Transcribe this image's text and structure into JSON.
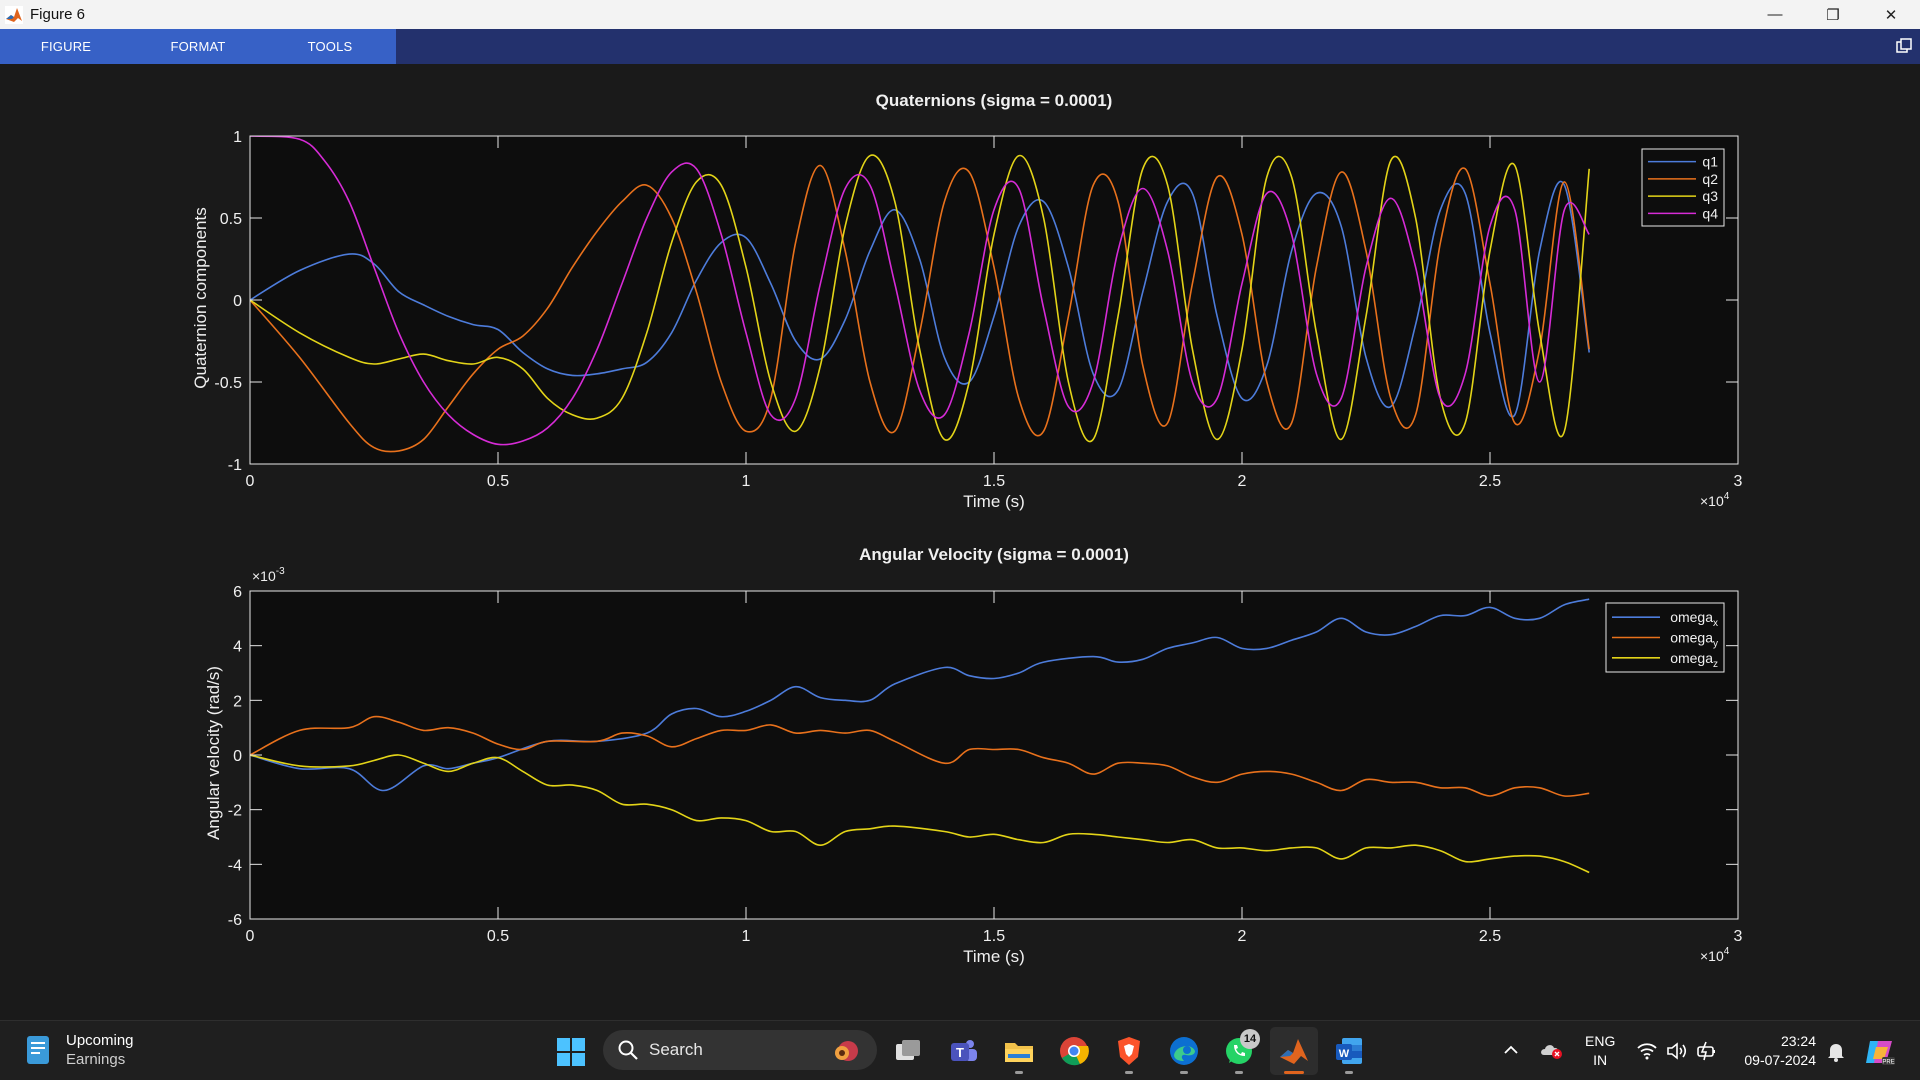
{
  "window": {
    "title": "Figure 6"
  },
  "ribbon": {
    "tabs": [
      "FIGURE",
      "FORMAT",
      "TOOLS"
    ]
  },
  "chart_data": [
    {
      "type": "line",
      "title": "Quaternions (sigma = 0.0001)",
      "xlabel": "Time (s)",
      "ylabel": "Quaternion components",
      "x_exponent": "×10",
      "x_exponent_power": "4",
      "xlim": [
        0,
        30000
      ],
      "ylim": [
        -1,
        1
      ],
      "xticks": [
        0,
        5000,
        10000,
        15000,
        20000,
        25000,
        30000
      ],
      "xtick_labels": [
        "0",
        "0.5",
        "1",
        "1.5",
        "2",
        "2.5",
        "3"
      ],
      "yticks": [
        -1,
        -0.5,
        0,
        0.5,
        1
      ],
      "ytick_labels": [
        "-1",
        "-0.5",
        "0",
        "0.5",
        "1"
      ],
      "legend_position": "top-right",
      "grid": false,
      "series": [
        {
          "name": "q1",
          "color": "#4d7cdb",
          "x": [
            0,
            1000,
            2000,
            2500,
            3000,
            3500,
            4000,
            4500,
            5000,
            5500,
            6000,
            6500,
            7000,
            7500,
            8000,
            8500,
            9000,
            9500,
            10000,
            10500,
            11000,
            11500,
            12000,
            12500,
            13000,
            13500,
            14000,
            14500,
            15000,
            15500,
            16000,
            16500,
            17000,
            17500,
            18000,
            18500,
            19000,
            19500,
            20000,
            20500,
            21000,
            21500,
            22000,
            22500,
            23000,
            23500,
            24000,
            24500,
            25000,
            25500,
            26000,
            26500,
            27000
          ],
          "y": [
            0,
            0.18,
            0.28,
            0.22,
            0.05,
            -0.03,
            -0.1,
            -0.15,
            -0.18,
            -0.32,
            -0.42,
            -0.46,
            -0.45,
            -0.42,
            -0.38,
            -0.2,
            0.12,
            0.35,
            0.38,
            0.1,
            -0.25,
            -0.36,
            -0.12,
            0.3,
            0.55,
            0.25,
            -0.35,
            -0.5,
            -0.1,
            0.45,
            0.6,
            0.2,
            -0.45,
            -0.55,
            0.05,
            0.6,
            0.65,
            -0.1,
            -0.6,
            -0.4,
            0.3,
            0.65,
            0.45,
            -0.35,
            -0.65,
            -0.15,
            0.55,
            0.65,
            -0.2,
            -0.7,
            0.3,
            0.7,
            -0.32
          ]
        },
        {
          "name": "q2",
          "color": "#e8711c",
          "x": [
            0,
            1000,
            2000,
            2500,
            3000,
            3500,
            4000,
            4500,
            5000,
            5500,
            6000,
            6500,
            7000,
            7500,
            8000,
            8500,
            9000,
            9500,
            10000,
            10500,
            11000,
            11500,
            12000,
            12500,
            13000,
            13500,
            14000,
            14500,
            15000,
            15500,
            16000,
            16500,
            17000,
            17500,
            18000,
            18500,
            19000,
            19500,
            20000,
            20500,
            21000,
            21500,
            22000,
            22500,
            23000,
            23500,
            24000,
            24500,
            25000,
            25500,
            26000,
            26500,
            27000
          ],
          "y": [
            0,
            -0.35,
            -0.75,
            -0.9,
            -0.92,
            -0.85,
            -0.65,
            -0.45,
            -0.3,
            -0.22,
            -0.05,
            0.2,
            0.42,
            0.6,
            0.7,
            0.5,
            0.05,
            -0.5,
            -0.8,
            -0.6,
            0.35,
            0.82,
            0.3,
            -0.5,
            -0.8,
            -0.2,
            0.6,
            0.78,
            0.2,
            -0.6,
            -0.8,
            -0.1,
            0.7,
            0.6,
            -0.4,
            -0.75,
            0.1,
            0.75,
            0.4,
            -0.5,
            -0.75,
            0.2,
            0.78,
            0.3,
            -0.6,
            -0.7,
            0.35,
            0.8,
            0.1,
            -0.75,
            -0.3,
            0.72,
            -0.3
          ]
        },
        {
          "name": "q3",
          "color": "#e3d418",
          "x": [
            0,
            1000,
            2000,
            2500,
            3000,
            3500,
            4000,
            4500,
            5000,
            5500,
            6000,
            6500,
            7000,
            7500,
            8000,
            8500,
            9000,
            9500,
            10000,
            10500,
            11000,
            11500,
            12000,
            12500,
            13000,
            13500,
            14000,
            14500,
            15000,
            15500,
            16000,
            16500,
            17000,
            17500,
            18000,
            18500,
            19000,
            19500,
            20000,
            20500,
            21000,
            21500,
            22000,
            22500,
            23000,
            23500,
            24000,
            24500,
            25000,
            25500,
            26000,
            26500,
            27000
          ],
          "y": [
            0,
            -0.2,
            -0.35,
            -0.39,
            -0.36,
            -0.33,
            -0.37,
            -0.39,
            -0.35,
            -0.42,
            -0.6,
            -0.7,
            -0.72,
            -0.6,
            -0.2,
            0.35,
            0.72,
            0.7,
            0.2,
            -0.5,
            -0.8,
            -0.4,
            0.45,
            0.88,
            0.6,
            -0.3,
            -0.85,
            -0.5,
            0.4,
            0.88,
            0.5,
            -0.5,
            -0.85,
            -0.1,
            0.8,
            0.7,
            -0.3,
            -0.85,
            -0.3,
            0.75,
            0.75,
            -0.2,
            -0.85,
            -0.1,
            0.85,
            0.5,
            -0.6,
            -0.75,
            0.3,
            0.82,
            -0.2,
            -0.8,
            0.8
          ]
        },
        {
          "name": "q4",
          "color": "#d62bd6",
          "x": [
            0,
            1000,
            1500,
            2000,
            2500,
            3000,
            3500,
            4000,
            4500,
            5000,
            5500,
            6000,
            6500,
            7000,
            7500,
            8000,
            8500,
            9000,
            9500,
            10000,
            10500,
            11000,
            11500,
            12000,
            12500,
            13000,
            13500,
            14000,
            14500,
            15000,
            15500,
            16000,
            16500,
            17000,
            17500,
            18000,
            18500,
            19000,
            19500,
            20000,
            20500,
            21000,
            21500,
            22000,
            22500,
            23000,
            23500,
            24000,
            24500,
            25000,
            25500,
            26000,
            26500,
            27000
          ],
          "y": [
            1,
            0.98,
            0.85,
            0.6,
            0.2,
            -0.2,
            -0.5,
            -0.7,
            -0.82,
            -0.88,
            -0.86,
            -0.78,
            -0.6,
            -0.3,
            0.1,
            0.5,
            0.78,
            0.8,
            0.4,
            -0.2,
            -0.7,
            -0.6,
            0.1,
            0.68,
            0.7,
            0.1,
            -0.55,
            -0.7,
            -0.2,
            0.55,
            0.68,
            -0.05,
            -0.65,
            -0.5,
            0.3,
            0.68,
            0.3,
            -0.5,
            -0.6,
            0.1,
            0.65,
            0.4,
            -0.45,
            -0.6,
            0.2,
            0.62,
            0.2,
            -0.6,
            -0.45,
            0.45,
            0.55,
            -0.5,
            0.55,
            0.4
          ]
        }
      ]
    },
    {
      "type": "line",
      "title": "Angular Velocity (sigma = 0.0001)",
      "xlabel": "Time (s)",
      "ylabel": "Angular velocity (rad/s)",
      "x_exponent": "×10",
      "x_exponent_power": "4",
      "y_exponent": "×10",
      "y_exponent_power": "-3",
      "xlim": [
        0,
        30000
      ],
      "ylim": [
        -0.006,
        0.006
      ],
      "xticks": [
        0,
        5000,
        10000,
        15000,
        20000,
        25000,
        30000
      ],
      "xtick_labels": [
        "0",
        "0.5",
        "1",
        "1.5",
        "2",
        "2.5",
        "3"
      ],
      "yticks": [
        -0.006,
        -0.004,
        -0.002,
        0,
        0.002,
        0.004,
        0.006
      ],
      "ytick_labels": [
        "-6",
        "-4",
        "-2",
        "0",
        "2",
        "4",
        "6"
      ],
      "legend_position": "top-right",
      "grid": false,
      "series": [
        {
          "name": "omega",
          "subscript": "x",
          "color": "#4d7cdb",
          "x": [
            0,
            1000,
            2000,
            2700,
            3500,
            4000,
            4500,
            5000,
            6000,
            7000,
            8000,
            8500,
            9000,
            9500,
            10000,
            10500,
            11000,
            11500,
            12000,
            12500,
            13000,
            14000,
            14500,
            15000,
            15500,
            16000,
            17000,
            17500,
            18000,
            18500,
            19000,
            19500,
            20000,
            20500,
            21000,
            21500,
            22000,
            22500,
            23000,
            23500,
            24000,
            24500,
            25000,
            25500,
            26000,
            26500,
            27000
          ],
          "y": [
            0,
            -0.0005,
            -0.0005,
            -0.0013,
            -0.0004,
            -0.0005,
            -0.0003,
            -0.0001,
            0.0005,
            0.0005,
            0.0008,
            0.0015,
            0.0017,
            0.0014,
            0.0016,
            0.002,
            0.0025,
            0.0021,
            0.002,
            0.002,
            0.0026,
            0.0032,
            0.0029,
            0.0028,
            0.003,
            0.0034,
            0.0036,
            0.0034,
            0.0035,
            0.0039,
            0.0041,
            0.0043,
            0.0039,
            0.0039,
            0.0042,
            0.0045,
            0.005,
            0.0045,
            0.0044,
            0.0047,
            0.0051,
            0.0051,
            0.0054,
            0.005,
            0.005,
            0.0055,
            0.0057
          ]
        },
        {
          "name": "omega",
          "subscript": "y",
          "color": "#e8711c",
          "x": [
            0,
            1000,
            2000,
            2500,
            3000,
            3500,
            4000,
            4500,
            5000,
            5500,
            6000,
            7000,
            7500,
            8000,
            8500,
            9000,
            9500,
            10000,
            10500,
            11000,
            11500,
            12000,
            12500,
            13000,
            14000,
            14500,
            15000,
            15500,
            16000,
            16500,
            17000,
            17500,
            18000,
            18500,
            19000,
            19500,
            20000,
            20500,
            21000,
            21500,
            22000,
            22500,
            23000,
            23500,
            24000,
            24500,
            25000,
            25500,
            26000,
            26500,
            27000
          ],
          "y": [
            0,
            0.0009,
            0.001,
            0.0014,
            0.0012,
            0.0009,
            0.001,
            0.0008,
            0.0004,
            0.0002,
            0.0005,
            0.0005,
            0.0008,
            0.0007,
            0.0003,
            0.0006,
            0.0009,
            0.0009,
            0.0011,
            0.0008,
            0.0009,
            0.0008,
            0.0009,
            0.0005,
            -0.0003,
            0.0002,
            0.0002,
            0.0002,
            -0.0001,
            -0.0003,
            -0.0007,
            -0.0003,
            -0.0003,
            -0.0004,
            -0.0008,
            -0.001,
            -0.0007,
            -0.0006,
            -0.0007,
            -0.001,
            -0.0013,
            -0.0009,
            -0.001,
            -0.001,
            -0.0012,
            -0.0012,
            -0.0015,
            -0.0012,
            -0.0012,
            -0.0015,
            -0.0014
          ]
        },
        {
          "name": "omega",
          "subscript": "z",
          "color": "#e3d418",
          "x": [
            0,
            1000,
            2000,
            2500,
            3000,
            3500,
            4000,
            4500,
            5000,
            5500,
            6000,
            6500,
            7000,
            7500,
            8000,
            8500,
            9000,
            9500,
            10000,
            10500,
            11000,
            11500,
            12000,
            12500,
            13000,
            14000,
            14500,
            15000,
            15500,
            16000,
            16500,
            17000,
            17500,
            18000,
            18500,
            19000,
            19500,
            20000,
            20500,
            21000,
            21500,
            22000,
            22500,
            23000,
            23500,
            24000,
            24500,
            25000,
            25500,
            26000,
            26500,
            27000
          ],
          "y": [
            0,
            -0.0004,
            -0.0004,
            -0.0002,
            0,
            -0.0003,
            -0.0006,
            -0.0003,
            -0.0001,
            -0.0006,
            -0.0011,
            -0.0011,
            -0.0013,
            -0.0018,
            -0.0018,
            -0.002,
            -0.0024,
            -0.0023,
            -0.0024,
            -0.0028,
            -0.0028,
            -0.0033,
            -0.0028,
            -0.0027,
            -0.0026,
            -0.0028,
            -0.003,
            -0.0029,
            -0.0031,
            -0.0032,
            -0.0029,
            -0.0029,
            -0.003,
            -0.0031,
            -0.0032,
            -0.0031,
            -0.0034,
            -0.0034,
            -0.0035,
            -0.0034,
            -0.0034,
            -0.0038,
            -0.0034,
            -0.0034,
            -0.0033,
            -0.0035,
            -0.0039,
            -0.0038,
            -0.0037,
            -0.0037,
            -0.0039,
            -0.0043
          ]
        }
      ]
    }
  ],
  "taskbar": {
    "widget_title": "Upcoming",
    "widget_subtitle": "Earnings",
    "search_placeholder": "Search",
    "whatsapp_badge": "14",
    "lang_top": "ENG",
    "lang_bottom": "IN",
    "time": "23:24",
    "date": "09-07-2024"
  }
}
